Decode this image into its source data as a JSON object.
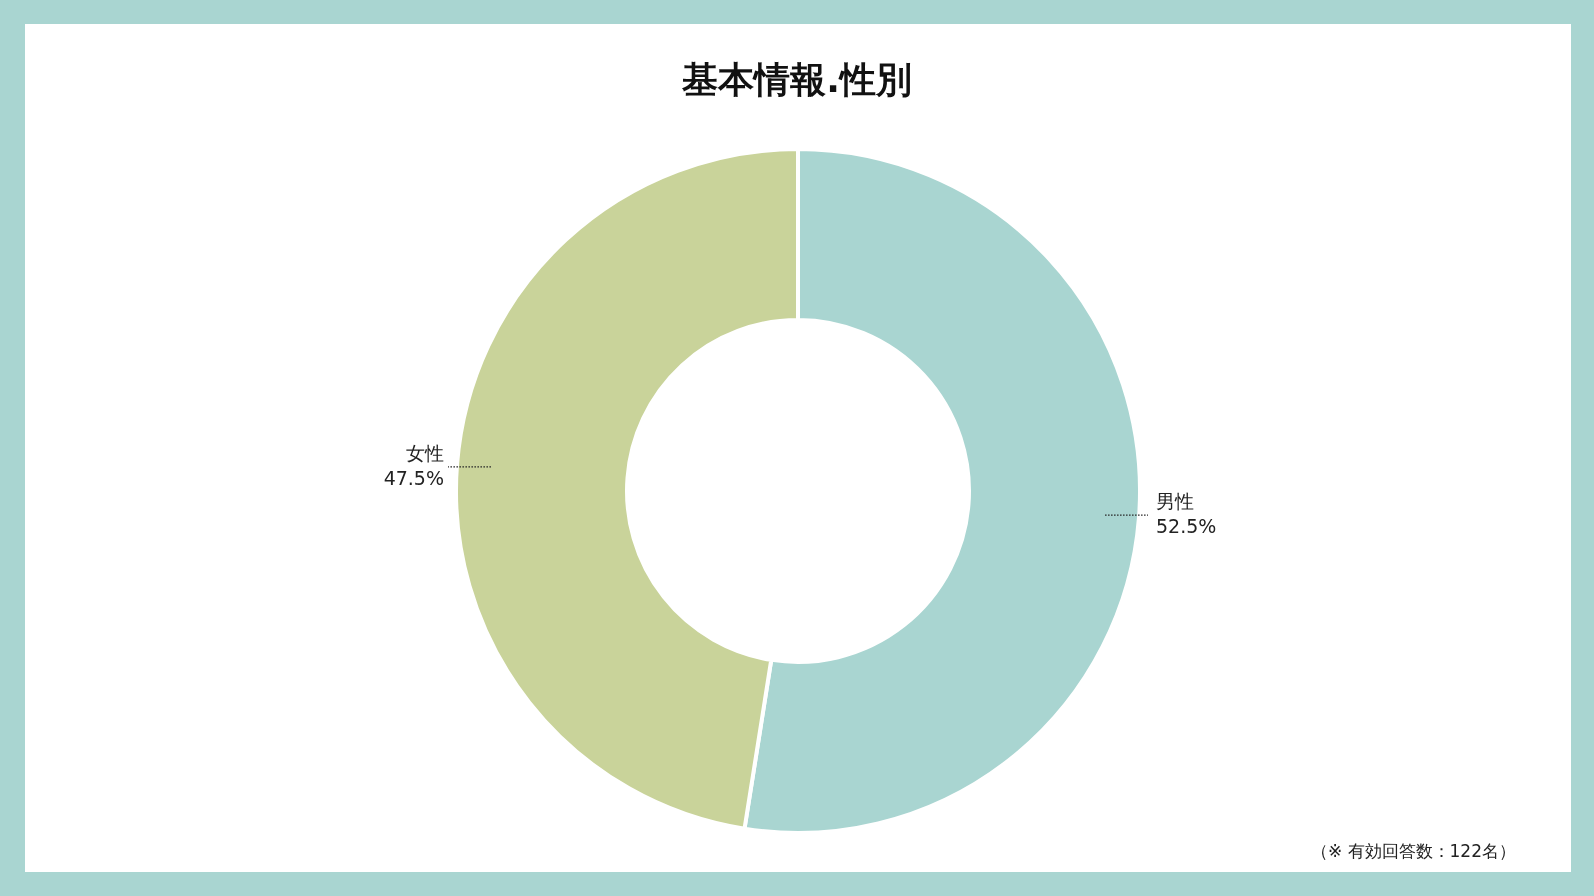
{
  "chart_data": {
    "type": "donut",
    "title": "基本情報.性別",
    "categories": [
      "男性",
      "女性"
    ],
    "values": [
      52.5,
      47.5
    ],
    "colors": [
      "#a9d5d1",
      "#c9d39a"
    ],
    "value_labels": [
      "52.5%",
      "47.5%"
    ],
    "legend": false,
    "annotations": [
      "（※ 有効回答数：122名）"
    ]
  }
}
